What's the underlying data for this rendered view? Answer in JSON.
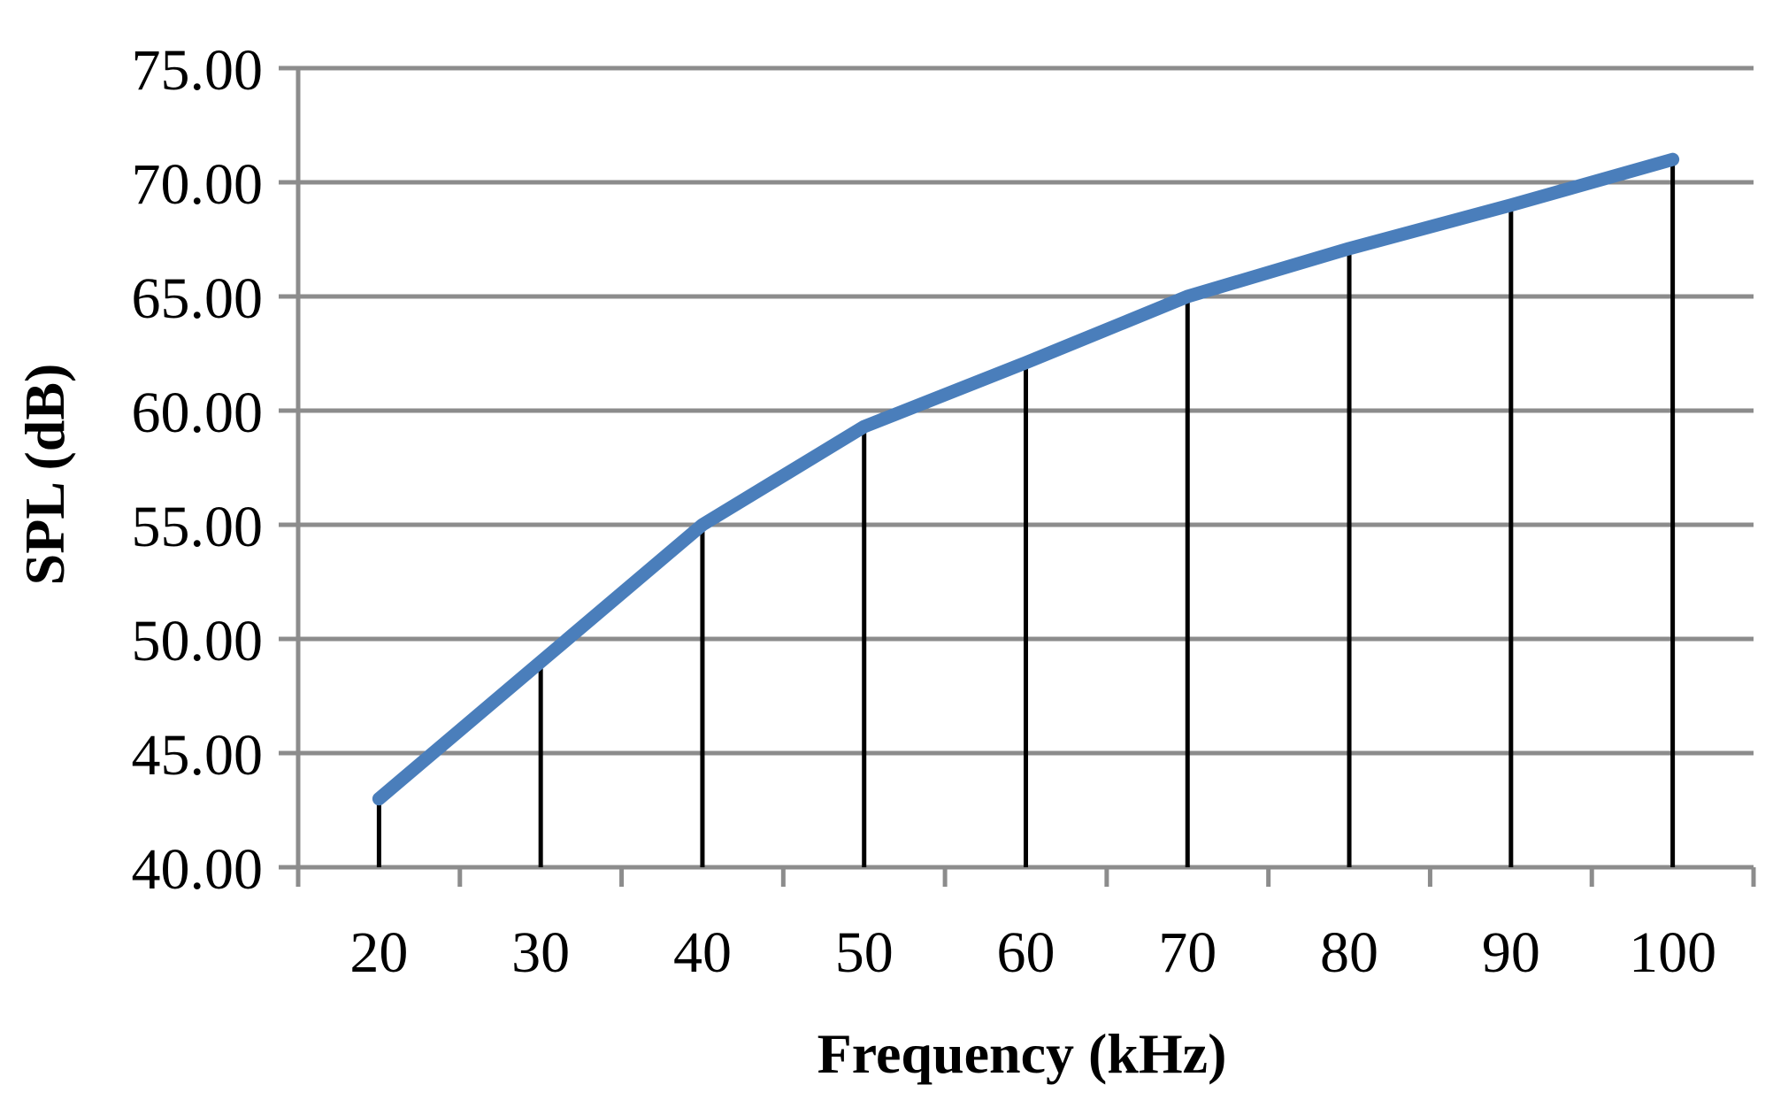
{
  "chart_data": {
    "type": "line",
    "title": "",
    "xlabel": "Frequency (kHz)",
    "ylabel": "SPL (dB)",
    "categories": [
      "20",
      "30",
      "40",
      "50",
      "60",
      "70",
      "80",
      "90",
      "100"
    ],
    "yticks": [
      "40.00",
      "45.00",
      "50.00",
      "55.00",
      "60.00",
      "65.00",
      "70.00",
      "75.00"
    ],
    "ylim": [
      40,
      75
    ],
    "grid": true,
    "legend": "none",
    "drop_lines": true,
    "series": [
      {
        "values": [
          43.0,
          49.0,
          55.0,
          59.3,
          62.1,
          65.0,
          67.1,
          69.0,
          71.0
        ],
        "color": "#4a7ebb"
      }
    ],
    "colors": {
      "gridline": "#8c8c8c",
      "drop_line": "#000000",
      "series_line": "#4a7ebb"
    }
  }
}
